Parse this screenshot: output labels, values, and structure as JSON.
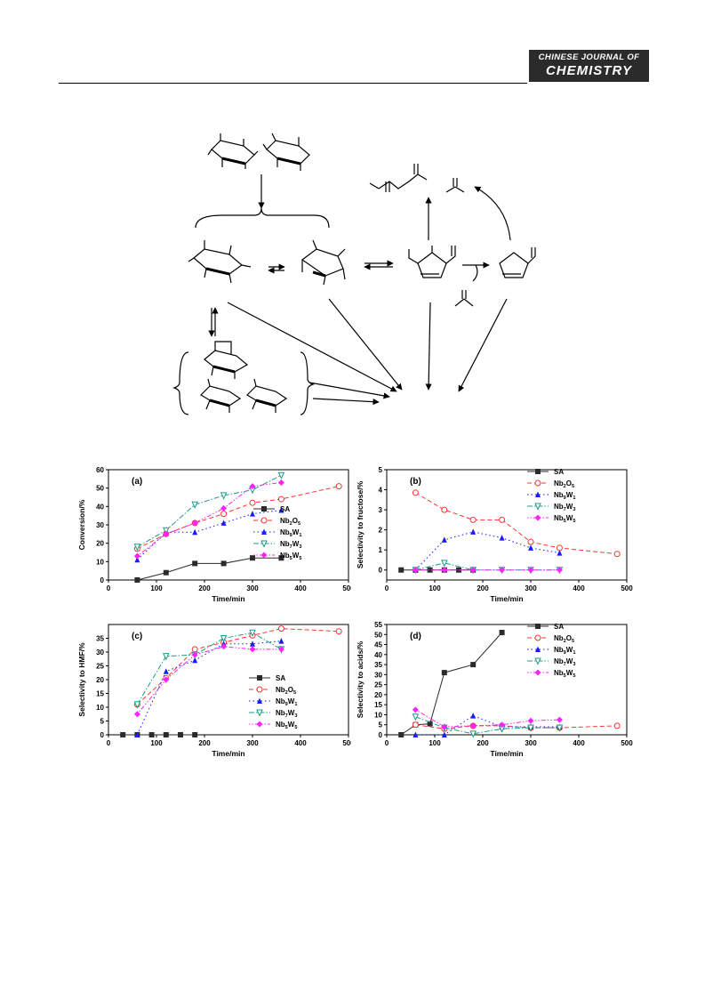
{
  "header": {
    "logo_line1": "CHINESE JOURNAL OF",
    "logo_line2": "CHEMISTRY"
  },
  "colors": {
    "SA": "#2b2b2b",
    "Nb2O5": "#ff3333",
    "Nb9W1": "#1a1aff",
    "Nb7W3": "#1f9a8a",
    "Nb5W5": "#ff22ff"
  },
  "chart_data": [
    {
      "id": "a",
      "panel_label": "(a)",
      "type": "line",
      "xlabel": "Time/min",
      "ylabel": "Conversion/%",
      "xlim": [
        0,
        500
      ],
      "ylim": [
        0,
        60
      ],
      "xticks": [
        0,
        100,
        200,
        300,
        400,
        500
      ],
      "yticks": [
        0,
        10,
        20,
        30,
        40,
        50,
        60
      ],
      "legend_position": "center-right",
      "series": [
        {
          "name": "SA",
          "sub": [
            "SA"
          ],
          "x": [
            60,
            120,
            180,
            240,
            300,
            360
          ],
          "y": [
            0,
            4,
            9,
            9,
            12,
            12
          ]
        },
        {
          "name": "Nb2O5",
          "sub": [
            "Nb",
            "2",
            "O",
            "5"
          ],
          "x": [
            60,
            120,
            180,
            240,
            300,
            360,
            480
          ],
          "y": [
            17,
            25,
            31,
            36,
            42,
            44,
            51
          ]
        },
        {
          "name": "Nb9W1",
          "sub": [
            "Nb",
            "9",
            "W",
            "1"
          ],
          "x": [
            60,
            120,
            180,
            240,
            300,
            360
          ],
          "y": [
            11,
            26,
            26,
            31,
            36,
            38
          ]
        },
        {
          "name": "Nb7W3",
          "sub": [
            "Nb",
            "7",
            "W",
            "3"
          ],
          "x": [
            60,
            120,
            180,
            240,
            300,
            360
          ],
          "y": [
            18,
            27,
            41,
            46,
            49,
            57
          ]
        },
        {
          "name": "Nb5W5",
          "sub": [
            "Nb",
            "5",
            "W",
            "5"
          ],
          "x": [
            60,
            120,
            180,
            240,
            300,
            360
          ],
          "y": [
            13,
            25,
            31,
            39,
            51,
            53
          ]
        }
      ]
    },
    {
      "id": "b",
      "panel_label": "(b)",
      "type": "line",
      "xlabel": "Time/min",
      "ylabel": "Selectivity to fructose/%",
      "xlim": [
        0,
        500
      ],
      "ylim": [
        -0.5,
        5
      ],
      "xticks": [
        0,
        100,
        200,
        300,
        400,
        500
      ],
      "yticks": [
        0,
        1,
        2,
        3,
        4,
        5
      ],
      "legend_position": "top-right",
      "series": [
        {
          "name": "SA",
          "sub": [
            "SA"
          ],
          "x": [
            30,
            60,
            90,
            120,
            150,
            180
          ],
          "y": [
            0,
            0,
            0,
            0,
            0,
            0
          ]
        },
        {
          "name": "Nb2O5",
          "sub": [
            "Nb",
            "2",
            "O",
            "5"
          ],
          "x": [
            60,
            120,
            180,
            240,
            300,
            360,
            480
          ],
          "y": [
            3.85,
            3.0,
            2.5,
            2.5,
            1.4,
            1.1,
            0.8
          ]
        },
        {
          "name": "Nb9W1",
          "sub": [
            "Nb",
            "9",
            "W",
            "1"
          ],
          "x": [
            60,
            120,
            180,
            240,
            300,
            360
          ],
          "y": [
            0,
            1.5,
            1.9,
            1.6,
            1.1,
            0.85
          ]
        },
        {
          "name": "Nb7W3",
          "sub": [
            "Nb",
            "7",
            "W",
            "3"
          ],
          "x": [
            60,
            120,
            180,
            240,
            300,
            360
          ],
          "y": [
            0,
            0.35,
            0,
            0,
            0,
            0
          ]
        },
        {
          "name": "Nb5W5",
          "sub": [
            "Nb",
            "5",
            "W",
            "5"
          ],
          "x": [
            60,
            120,
            180,
            240,
            300,
            360
          ],
          "y": [
            0,
            0,
            0,
            0,
            0,
            0
          ]
        }
      ]
    },
    {
      "id": "c",
      "panel_label": "(c)",
      "type": "line",
      "xlabel": "Time/min",
      "ylabel": "Selectivity to HMF/%",
      "xlim": [
        0,
        500
      ],
      "ylim": [
        0,
        40
      ],
      "xticks": [
        0,
        100,
        200,
        300,
        400,
        500
      ],
      "yticks": [
        0,
        5,
        10,
        15,
        20,
        25,
        30,
        35
      ],
      "legend_position": "bottom-right",
      "series": [
        {
          "name": "SA",
          "sub": [
            "SA"
          ],
          "x": [
            30,
            60,
            90,
            120,
            150,
            180
          ],
          "y": [
            0,
            0,
            0,
            0,
            0,
            0
          ]
        },
        {
          "name": "Nb2O5",
          "sub": [
            "Nb",
            "2",
            "O",
            "5"
          ],
          "x": [
            60,
            120,
            180,
            240,
            300,
            360,
            480
          ],
          "y": [
            11,
            20.5,
            31,
            33.5,
            36,
            38.5,
            37.5
          ]
        },
        {
          "name": "Nb9W1",
          "sub": [
            "Nb",
            "9",
            "W",
            "1"
          ],
          "x": [
            60,
            120,
            180,
            240,
            300,
            360
          ],
          "y": [
            0,
            23,
            27,
            33,
            33,
            34
          ]
        },
        {
          "name": "Nb7W3",
          "sub": [
            "Nb",
            "7",
            "W",
            "3"
          ],
          "x": [
            60,
            120,
            180,
            240,
            300,
            360
          ],
          "y": [
            11,
            28.5,
            29,
            35,
            37,
            31
          ]
        },
        {
          "name": "Nb5W5",
          "sub": [
            "Nb",
            "5",
            "W",
            "5"
          ],
          "x": [
            60,
            120,
            180,
            240,
            300,
            360
          ],
          "y": [
            7.5,
            20,
            29,
            32,
            31,
            31
          ]
        }
      ]
    },
    {
      "id": "d",
      "panel_label": "(d)",
      "type": "line",
      "xlabel": "Time/min",
      "ylabel": "Selectivity to acids/%",
      "xlim": [
        0,
        500
      ],
      "ylim": [
        0,
        55
      ],
      "xticks": [
        0,
        100,
        200,
        300,
        400,
        500
      ],
      "yticks": [
        0,
        5,
        10,
        15,
        20,
        25,
        30,
        35,
        40,
        45,
        50,
        55
      ],
      "legend_position": "top-right",
      "series": [
        {
          "name": "SA",
          "sub": [
            "SA"
          ],
          "x": [
            30,
            60,
            90,
            120,
            180,
            240
          ],
          "y": [
            0,
            5,
            5.5,
            31,
            35,
            51
          ]
        },
        {
          "name": "Nb2O5",
          "sub": [
            "Nb",
            "2",
            "O",
            "5"
          ],
          "x": [
            60,
            120,
            180,
            240,
            300,
            360,
            480
          ],
          "y": [
            5,
            3,
            4.5,
            4.5,
            3.5,
            3.5,
            4.5
          ]
        },
        {
          "name": "Nb9W1",
          "sub": [
            "Nb",
            "9",
            "W",
            "1"
          ],
          "x": [
            60,
            120,
            180,
            240,
            300,
            360
          ],
          "y": [
            0,
            0,
            9.5,
            4,
            4,
            4
          ]
        },
        {
          "name": "Nb7W3",
          "sub": [
            "Nb",
            "7",
            "W",
            "3"
          ],
          "x": [
            60,
            120,
            180,
            240,
            300,
            360
          ],
          "y": [
            9,
            3.5,
            0.5,
            3,
            3.5,
            3.5
          ]
        },
        {
          "name": "Nb5W5",
          "sub": [
            "Nb",
            "5",
            "W",
            "5"
          ],
          "x": [
            60,
            120,
            180,
            240,
            300,
            360
          ],
          "y": [
            12.5,
            4,
            4.5,
            5,
            7,
            7.5
          ]
        }
      ]
    }
  ]
}
